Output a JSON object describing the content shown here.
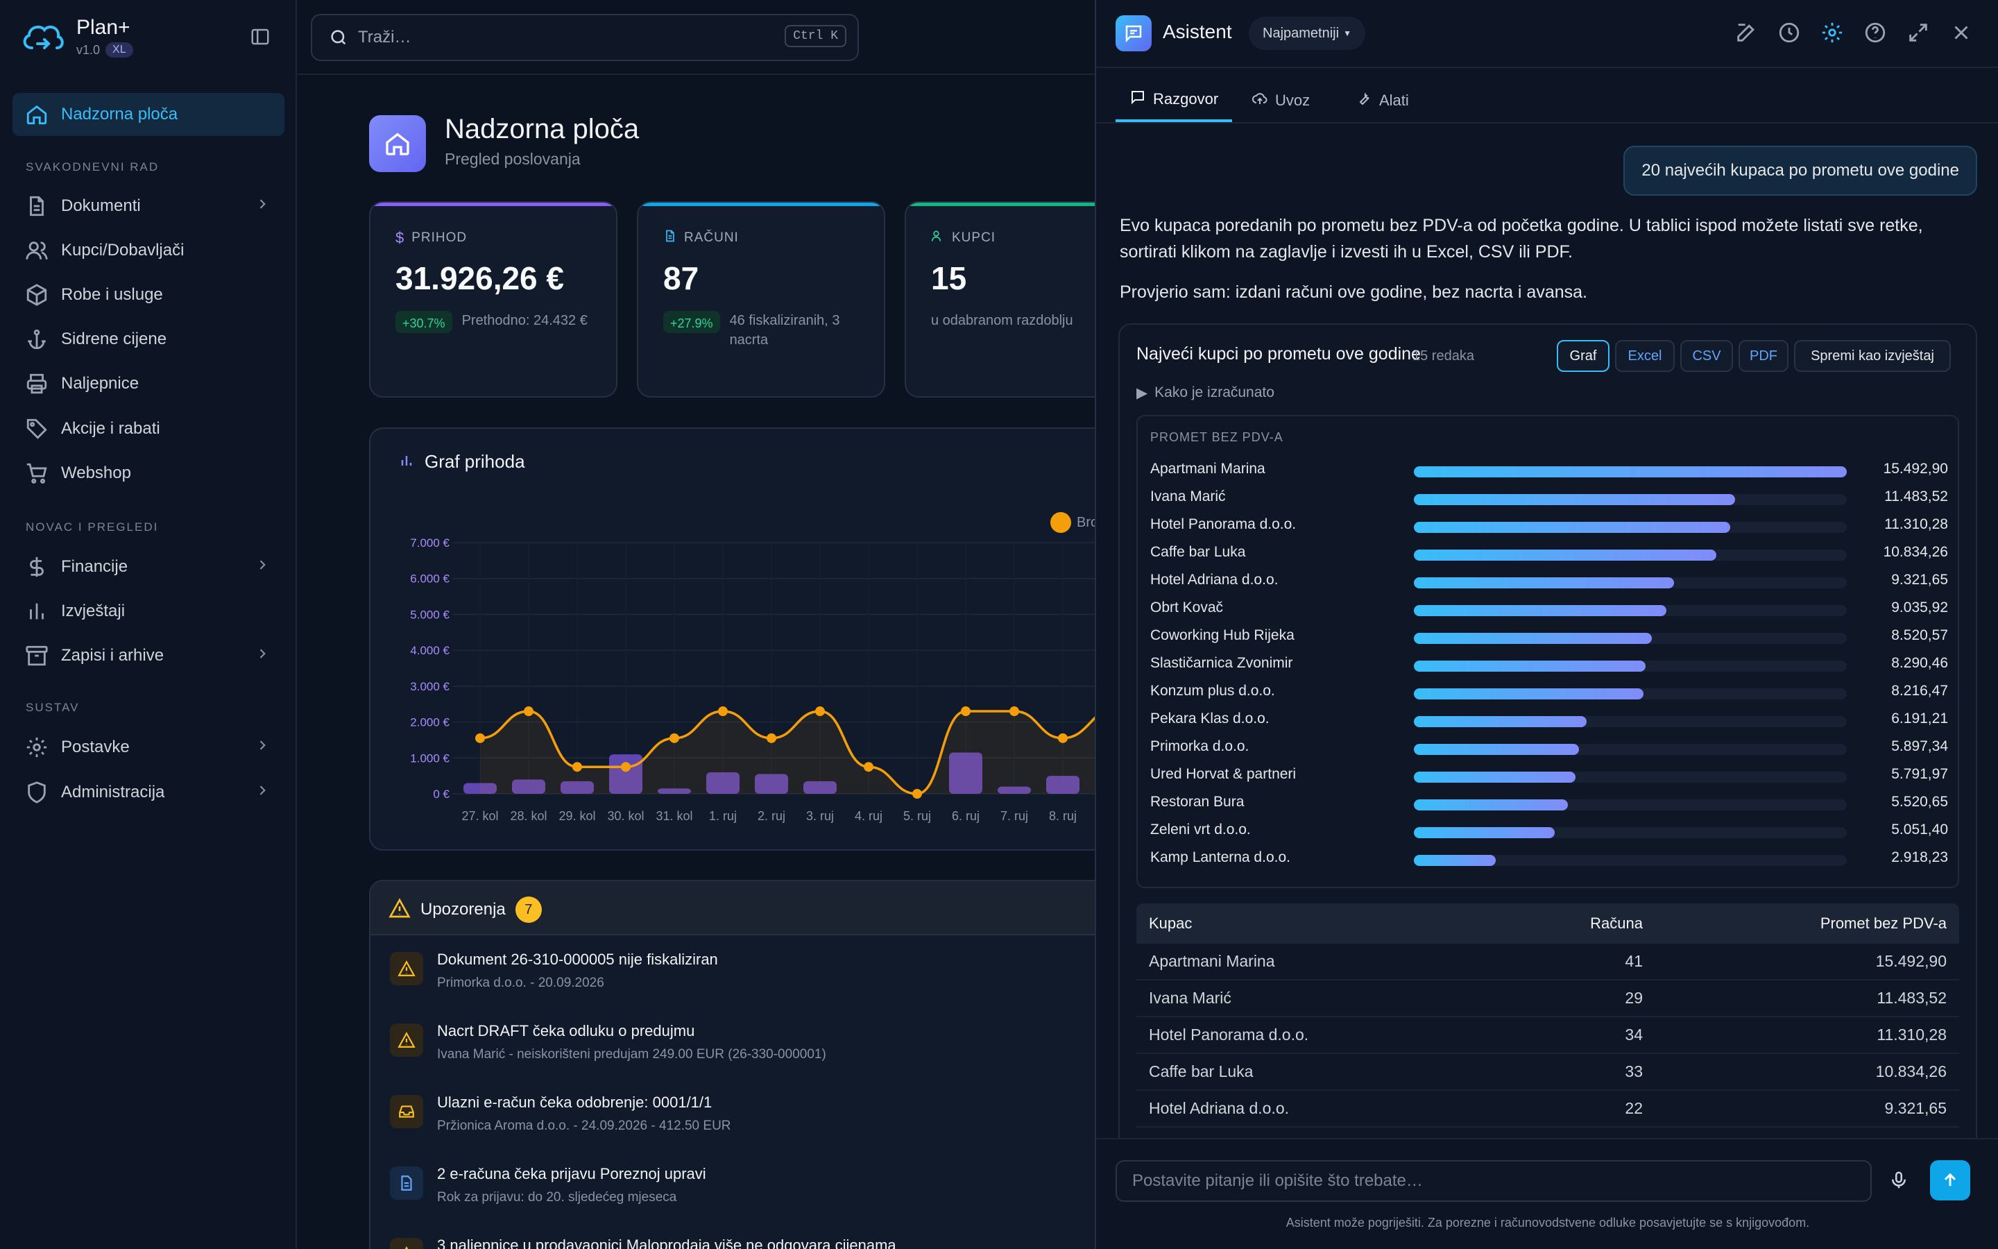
{
  "app": {
    "name": "Plan+",
    "version": "v1.0",
    "badge": "XL"
  },
  "search": {
    "placeholder": "Traži…",
    "shortcut": "Ctrl K"
  },
  "sidebar": {
    "items": [
      {
        "label": "Nadzorna ploča",
        "icon": "home-icon",
        "active": true
      },
      {
        "label": "Dokumenti",
        "icon": "document-icon",
        "chevron": true
      },
      {
        "label": "Kupci/Dobavljači",
        "icon": "users-icon"
      },
      {
        "label": "Robe i usluge",
        "icon": "box-icon"
      },
      {
        "label": "Sidrene cijene",
        "icon": "anchor-icon"
      },
      {
        "label": "Naljepnice",
        "icon": "printer-icon"
      },
      {
        "label": "Akcije i rabati",
        "icon": "tag-icon"
      },
      {
        "label": "Webshop",
        "icon": "cart-icon"
      },
      {
        "label": "Financije",
        "icon": "dollar-icon",
        "chevron": true
      },
      {
        "label": "Izvještaji",
        "icon": "bar-chart-icon"
      },
      {
        "label": "Zapisi i arhive",
        "icon": "archive-icon",
        "chevron": true
      },
      {
        "label": "Postavke",
        "icon": "gear-icon",
        "chevron": true
      },
      {
        "label": "Administracija",
        "icon": "shield-icon",
        "chevron": true
      }
    ],
    "sections": [
      "SVAKODNEVNI RAD",
      "NOVAC I PREGLEDI",
      "SUSTAV"
    ]
  },
  "dashboard": {
    "title": "Nadzorna ploča",
    "subtitle": "Pregled poslovanja",
    "cards": [
      {
        "label": "PRIHOD",
        "value": "31.926,26 €",
        "pill": "+30.7%",
        "note": "Prethodno: 24.432 €",
        "accent": "#8b5cf6"
      },
      {
        "label": "RAČUNI",
        "value": "87",
        "pill": "+27.9%",
        "note": "46 fiskaliziranih, 3 nacrta",
        "accent": "#0ea5e9"
      },
      {
        "label": "KUPCI",
        "value": "15",
        "note": "u odabranom razdoblju",
        "accent": "#10b981"
      }
    ],
    "chart_title": "Graf prihoda",
    "legend_partial": "Bro",
    "warnings_title": "Upozorenja",
    "warnings_count": "7",
    "warnings": [
      {
        "title": "Dokument 26-310-000005 nije fiskaliziran",
        "sub": "Primorka d.o.o. - 20.09.2026",
        "icon": "warning-icon"
      },
      {
        "title": "Nacrt DRAFT čeka odluku o predujmu",
        "sub": "Ivana Marić - neiskorišteni predujam 249.00 EUR (26-330-000001)",
        "icon": "warning-icon"
      },
      {
        "title": "Ulazni e-račun čeka odobrenje: 0001/1/1",
        "sub": "Pržionica Aroma d.o.o. - 24.09.2026 - 412.50 EUR",
        "icon": "inbox-icon"
      },
      {
        "title": "2 e-računa čeka prijavu Poreznoj upravi",
        "sub": "Rok za prijavu: do 20. sljedećeg mjeseca",
        "icon": "file-icon"
      },
      {
        "title": "3 naljepnice u prodavaonici Maloprodaja više ne odgovara cijenama",
        "sub": "",
        "icon": "warning-icon"
      }
    ]
  },
  "chart_data": {
    "type": "bar",
    "title": "Graf prihoda",
    "categories": [
      "27. kol",
      "28. kol",
      "29. kol",
      "30. kol",
      "31. kol",
      "1. ruj",
      "2. ruj",
      "3. ruj",
      "4. ruj",
      "5. ruj",
      "6. ruj",
      "7. ruj",
      "8. ruj"
    ],
    "series": [
      {
        "type": "bar",
        "values": [
          300,
          400,
          350,
          1100,
          150,
          600,
          550,
          350,
          0,
          0,
          1150,
          200,
          500
        ]
      },
      {
        "name": "Bro",
        "type": "line",
        "values": [
          1550,
          2300,
          750,
          750,
          1550,
          2300,
          1550,
          2300,
          750,
          0,
          2300,
          2300,
          1550
        ]
      }
    ],
    "yticks": [
      "0 €",
      "1.000 €",
      "2.000 €",
      "3.000 €",
      "4.000 €",
      "5.000 €",
      "6.000 €",
      "7.000 €"
    ],
    "ylim": [
      0,
      7000
    ]
  },
  "assistant": {
    "title": "Asistent",
    "model": "Najpametniji",
    "tabs": [
      "Razgovor",
      "Uvoz",
      "Alati"
    ],
    "user_msg": "20 najvećih kupaca po prometu ove godine",
    "reply1": "Evo kupaca poredanih po prometu bez PDV-a od početka godine. U tablici ispod možete listati sve retke, sortirati klikom na zaglavlje i izvesti ih u Excel, CSV ili PDF.",
    "reply2": "Provjerio sam: izdani računi ove godine, bez nacrta i avansa.",
    "result_title": "Najveći kupci po prometu ove godine",
    "result_count": "15 redaka",
    "buttons": [
      "Graf",
      "Excel",
      "CSV",
      "PDF",
      "Spremi kao izvještaj"
    ],
    "how": "Kako je izračunato",
    "rank_label": "PROMET BEZ PDV-A",
    "table_headers": [
      "Kupac",
      "Računa",
      "Promet bez PDV-a"
    ],
    "customers": [
      {
        "name": "Apartmani Marina",
        "count": "41",
        "amount": "15.492,90",
        "v": 15492.9
      },
      {
        "name": "Ivana Marić",
        "count": "29",
        "amount": "11.483,52",
        "v": 11483.52
      },
      {
        "name": "Hotel Panorama d.o.o.",
        "count": "34",
        "amount": "11.310,28",
        "v": 11310.28
      },
      {
        "name": "Caffe bar Luka",
        "count": "33",
        "amount": "10.834,26",
        "v": 10834.26
      },
      {
        "name": "Hotel Adriana d.o.o.",
        "count": "22",
        "amount": "9.321,65",
        "v": 9321.65
      },
      {
        "name": "Obrt Kovač",
        "count": "",
        "amount": "9.035,92",
        "v": 9035.92
      },
      {
        "name": "Coworking Hub Rijeka",
        "count": "",
        "amount": "8.520,57",
        "v": 8520.57
      },
      {
        "name": "Slastičarnica Zvonimir",
        "count": "",
        "amount": "8.290,46",
        "v": 8290.46
      },
      {
        "name": "Konzum plus d.o.o.",
        "count": "",
        "amount": "8.216,47",
        "v": 8216.47
      },
      {
        "name": "Pekara Klas d.o.o.",
        "count": "",
        "amount": "6.191,21",
        "v": 6191.21
      },
      {
        "name": "Primorka d.o.o.",
        "count": "",
        "amount": "5.897,34",
        "v": 5897.34
      },
      {
        "name": "Ured Horvat & partneri",
        "count": "",
        "amount": "5.791,97",
        "v": 5791.97
      },
      {
        "name": "Restoran Bura",
        "count": "",
        "amount": "5.520,65",
        "v": 5520.65
      },
      {
        "name": "Zeleni vrt d.o.o.",
        "count": "",
        "amount": "5.051,40",
        "v": 5051.4
      },
      {
        "name": "Kamp Lanterna d.o.o.",
        "count": "",
        "amount": "2.918,23",
        "v": 2918.23
      }
    ],
    "input_placeholder": "Postavite pitanje ili opišite što trebate…",
    "footnote": "Asistent može pogriješiti. Za porezne i računovodstvene odluke posavjetujte se s knjigovođom."
  }
}
